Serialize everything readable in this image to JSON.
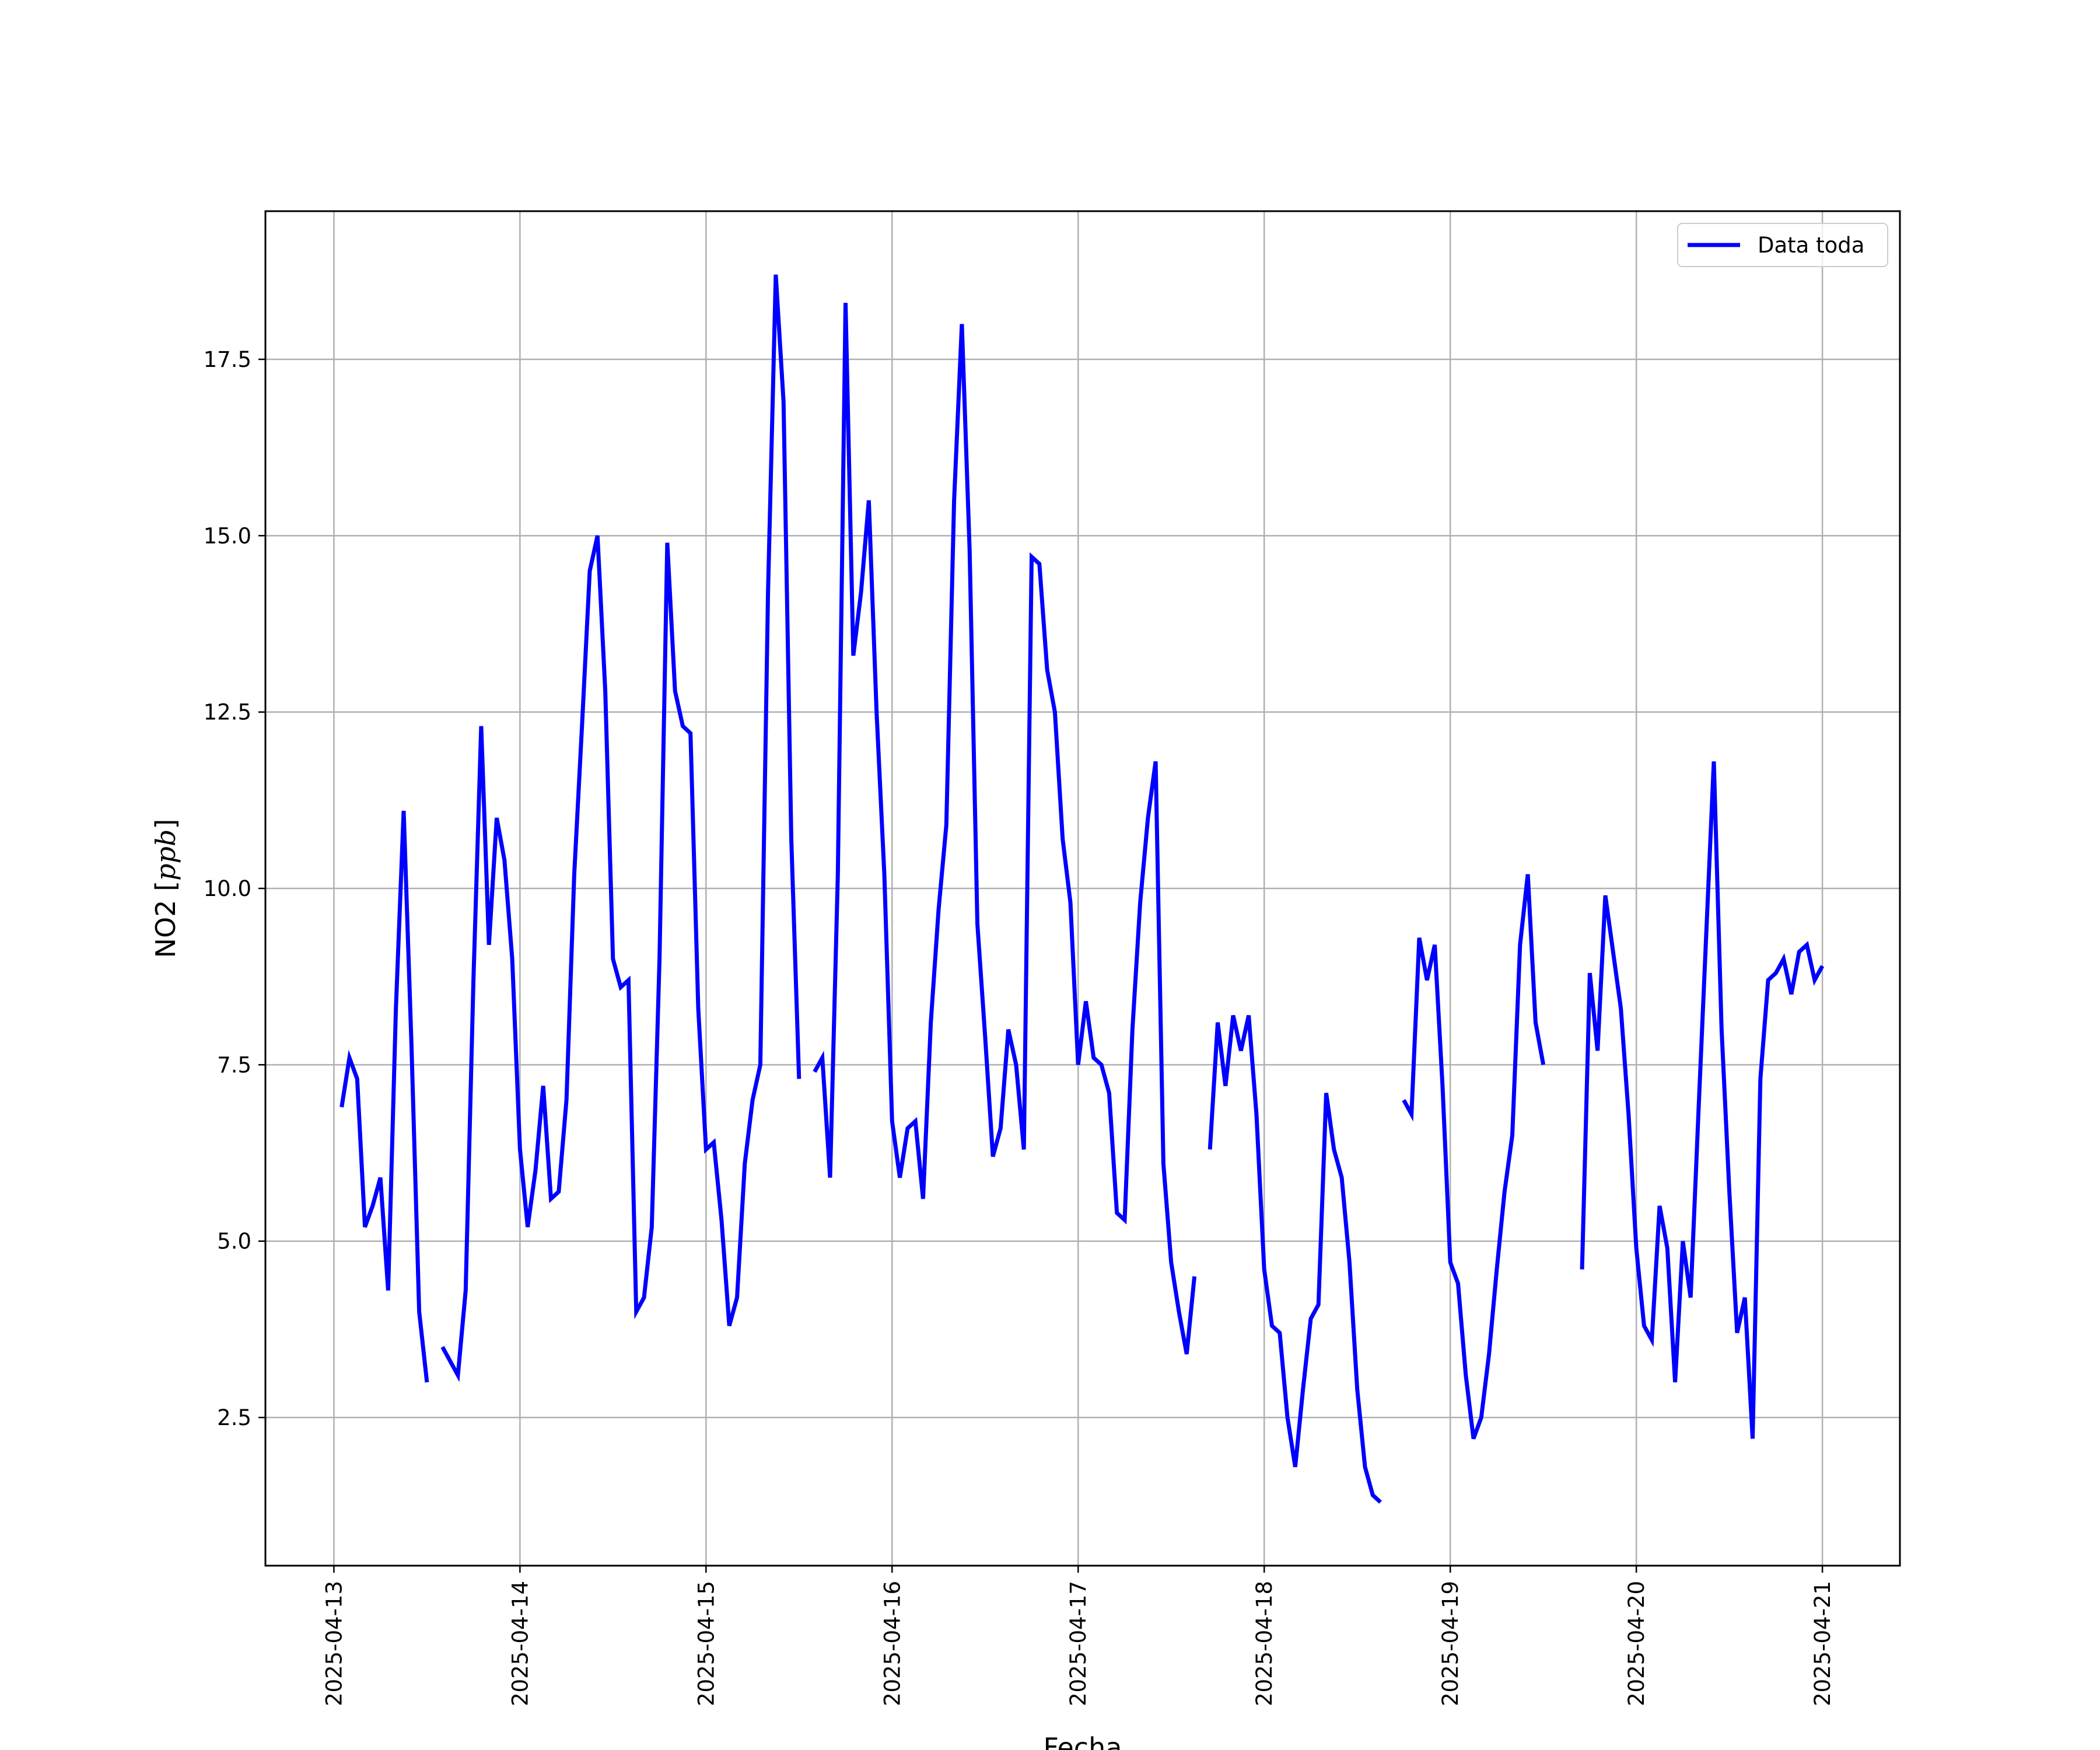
{
  "chart_data": {
    "type": "line",
    "title": "",
    "xlabel": "Fecha",
    "ylabel": "NO2 [ppb]",
    "ylabel_main": "NO2",
    "ylabel_unit": "ppb",
    "x_ticks": [
      "2025-04-13",
      "2025-04-14",
      "2025-04-15",
      "2025-04-16",
      "2025-04-17",
      "2025-04-18",
      "2025-04-19",
      "2025-04-20",
      "2025-04-21"
    ],
    "y_ticks": [
      "2.5",
      "5.0",
      "7.5",
      "10.0",
      "12.5",
      "15.0",
      "17.5"
    ],
    "xlim": [
      "2025-04-12T15:10",
      "2025-04-21T10:00"
    ],
    "ylim": [
      0.4,
      19.6
    ],
    "grid": true,
    "legend": "upper-right",
    "line_color": "#0000ff",
    "series": [
      {
        "name": "Data toda",
        "segments": [
          [
            [
              "2025-04-13T01:00",
              6.9
            ],
            [
              "2025-04-13T02:00",
              7.6
            ],
            [
              "2025-04-13T03:00",
              7.3
            ],
            [
              "2025-04-13T04:00",
              5.2
            ],
            [
              "2025-04-13T05:00",
              5.5
            ],
            [
              "2025-04-13T06:00",
              5.9
            ],
            [
              "2025-04-13T07:00",
              4.3
            ],
            [
              "2025-04-13T08:00",
              8.3
            ],
            [
              "2025-04-13T09:00",
              11.1
            ],
            [
              "2025-04-13T10:00",
              7.8
            ],
            [
              "2025-04-13T11:00",
              4.0
            ],
            [
              "2025-04-13T12:00",
              3.0
            ]
          ],
          [
            [
              "2025-04-13T14:00",
              3.5
            ],
            [
              "2025-04-13T15:00",
              3.3
            ],
            [
              "2025-04-13T16:00",
              3.1
            ],
            [
              "2025-04-13T17:00",
              4.3
            ],
            [
              "2025-04-13T18:00",
              8.7
            ],
            [
              "2025-04-13T19:00",
              12.3
            ],
            [
              "2025-04-13T20:00",
              9.2
            ],
            [
              "2025-04-13T21:00",
              11.0
            ],
            [
              "2025-04-13T22:00",
              10.4
            ],
            [
              "2025-04-13T23:00",
              9.0
            ],
            [
              "2025-04-14T00:00",
              6.3
            ],
            [
              "2025-04-14T01:00",
              5.2
            ],
            [
              "2025-04-14T02:00",
              6.0
            ],
            [
              "2025-04-14T03:00",
              7.2
            ],
            [
              "2025-04-14T04:00",
              5.6
            ],
            [
              "2025-04-14T05:00",
              5.7
            ],
            [
              "2025-04-14T06:00",
              7.0
            ],
            [
              "2025-04-14T07:00",
              10.2
            ],
            [
              "2025-04-14T08:00",
              12.3
            ],
            [
              "2025-04-14T09:00",
              14.5
            ],
            [
              "2025-04-14T10:00",
              15.0
            ],
            [
              "2025-04-14T11:00",
              12.8
            ],
            [
              "2025-04-14T12:00",
              9.0
            ],
            [
              "2025-04-14T13:00",
              8.6
            ],
            [
              "2025-04-14T14:00",
              8.7
            ],
            [
              "2025-04-14T15:00",
              4.0
            ],
            [
              "2025-04-14T16:00",
              4.2
            ],
            [
              "2025-04-14T17:00",
              5.2
            ],
            [
              "2025-04-14T18:00",
              9.0
            ],
            [
              "2025-04-14T19:00",
              14.9
            ],
            [
              "2025-04-14T20:00",
              12.8
            ],
            [
              "2025-04-14T21:00",
              12.3
            ],
            [
              "2025-04-14T22:00",
              12.2
            ],
            [
              "2025-04-14T23:00",
              8.3
            ],
            [
              "2025-04-15T00:00",
              6.3
            ],
            [
              "2025-04-15T01:00",
              6.4
            ],
            [
              "2025-04-15T02:00",
              5.3
            ],
            [
              "2025-04-15T03:00",
              3.8
            ],
            [
              "2025-04-15T04:00",
              4.2
            ],
            [
              "2025-04-15T05:00",
              6.1
            ],
            [
              "2025-04-15T06:00",
              7.0
            ],
            [
              "2025-04-15T07:00",
              7.5
            ],
            [
              "2025-04-15T08:00",
              14.2
            ],
            [
              "2025-04-15T09:00",
              18.7
            ],
            [
              "2025-04-15T10:00",
              16.9
            ],
            [
              "2025-04-15T11:00",
              10.7
            ],
            [
              "2025-04-15T12:00",
              7.3
            ]
          ],
          [
            [
              "2025-04-15T14:00",
              7.4
            ],
            [
              "2025-04-15T15:00",
              7.6
            ],
            [
              "2025-04-15T16:00",
              5.9
            ],
            [
              "2025-04-15T17:00",
              10.2
            ],
            [
              "2025-04-15T18:00",
              18.3
            ],
            [
              "2025-04-15T19:00",
              13.3
            ],
            [
              "2025-04-15T20:00",
              14.2
            ],
            [
              "2025-04-15T21:00",
              15.5
            ],
            [
              "2025-04-15T22:00",
              12.5
            ],
            [
              "2025-04-15T23:00",
              10.2
            ],
            [
              "2025-04-16T00:00",
              6.7
            ],
            [
              "2025-04-16T01:00",
              5.9
            ],
            [
              "2025-04-16T02:00",
              6.6
            ],
            [
              "2025-04-16T03:00",
              6.7
            ],
            [
              "2025-04-16T04:00",
              5.6
            ],
            [
              "2025-04-16T05:00",
              8.1
            ],
            [
              "2025-04-16T06:00",
              9.7
            ],
            [
              "2025-04-16T07:00",
              10.9
            ],
            [
              "2025-04-16T08:00",
              15.5
            ],
            [
              "2025-04-16T09:00",
              18.0
            ],
            [
              "2025-04-16T10:00",
              14.8
            ],
            [
              "2025-04-16T11:00",
              9.5
            ],
            [
              "2025-04-16T12:00",
              7.9
            ],
            [
              "2025-04-16T13:00",
              6.2
            ],
            [
              "2025-04-16T14:00",
              6.6
            ],
            [
              "2025-04-16T15:00",
              8.0
            ],
            [
              "2025-04-16T16:00",
              7.5
            ],
            [
              "2025-04-16T17:00",
              6.3
            ],
            [
              "2025-04-16T18:00",
              14.7
            ],
            [
              "2025-04-16T19:00",
              14.6
            ],
            [
              "2025-04-16T20:00",
              13.1
            ],
            [
              "2025-04-16T21:00",
              12.5
            ],
            [
              "2025-04-16T22:00",
              10.7
            ],
            [
              "2025-04-16T23:00",
              9.8
            ],
            [
              "2025-04-17T00:00",
              7.5
            ],
            [
              "2025-04-17T01:00",
              8.4
            ],
            [
              "2025-04-17T02:00",
              7.6
            ],
            [
              "2025-04-17T03:00",
              7.5
            ],
            [
              "2025-04-17T04:00",
              7.1
            ],
            [
              "2025-04-17T05:00",
              5.4
            ],
            [
              "2025-04-17T06:00",
              5.3
            ],
            [
              "2025-04-17T07:00",
              8.0
            ],
            [
              "2025-04-17T08:00",
              9.8
            ],
            [
              "2025-04-17T09:00",
              11.0
            ],
            [
              "2025-04-17T10:00",
              11.8
            ],
            [
              "2025-04-17T11:00",
              6.1
            ],
            [
              "2025-04-17T12:00",
              4.7
            ],
            [
              "2025-04-17T13:00",
              4.0
            ],
            [
              "2025-04-17T14:00",
              3.4
            ],
            [
              "2025-04-17T15:00",
              4.5
            ]
          ],
          [
            [
              "2025-04-17T17:00",
              6.3
            ],
            [
              "2025-04-17T18:00",
              8.1
            ],
            [
              "2025-04-17T19:00",
              7.2
            ],
            [
              "2025-04-17T20:00",
              8.2
            ],
            [
              "2025-04-17T21:00",
              7.7
            ],
            [
              "2025-04-17T22:00",
              8.2
            ],
            [
              "2025-04-17T23:00",
              6.8
            ],
            [
              "2025-04-18T00:00",
              4.6
            ],
            [
              "2025-04-18T01:00",
              3.8
            ],
            [
              "2025-04-18T02:00",
              3.7
            ],
            [
              "2025-04-18T03:00",
              2.5
            ],
            [
              "2025-04-18T04:00",
              1.8
            ],
            [
              "2025-04-18T05:00",
              2.9
            ],
            [
              "2025-04-18T06:00",
              3.9
            ],
            [
              "2025-04-18T07:00",
              4.1
            ],
            [
              "2025-04-18T08:00",
              7.1
            ],
            [
              "2025-04-18T09:00",
              6.3
            ],
            [
              "2025-04-18T10:00",
              5.9
            ],
            [
              "2025-04-18T11:00",
              4.7
            ],
            [
              "2025-04-18T12:00",
              2.9
            ],
            [
              "2025-04-18T13:00",
              1.8
            ],
            [
              "2025-04-18T14:00",
              1.4
            ],
            [
              "2025-04-18T15:00",
              1.3
            ]
          ],
          [
            [
              "2025-04-18T18:00",
              7.0
            ],
            [
              "2025-04-18T19:00",
              6.8
            ],
            [
              "2025-04-18T20:00",
              9.3
            ],
            [
              "2025-04-18T21:00",
              8.7
            ],
            [
              "2025-04-18T22:00",
              9.2
            ],
            [
              "2025-04-18T23:00",
              7.2
            ],
            [
              "2025-04-19T00:00",
              4.7
            ],
            [
              "2025-04-19T01:00",
              4.4
            ],
            [
              "2025-04-19T02:00",
              3.1
            ],
            [
              "2025-04-19T03:00",
              2.2
            ],
            [
              "2025-04-19T04:00",
              2.5
            ],
            [
              "2025-04-19T05:00",
              3.4
            ],
            [
              "2025-04-19T06:00",
              4.6
            ],
            [
              "2025-04-19T07:00",
              5.7
            ],
            [
              "2025-04-19T08:00",
              6.5
            ],
            [
              "2025-04-19T09:00",
              9.2
            ],
            [
              "2025-04-19T10:00",
              10.2
            ],
            [
              "2025-04-19T11:00",
              8.1
            ],
            [
              "2025-04-19T12:00",
              7.5
            ]
          ],
          [
            [
              "2025-04-19T17:00",
              4.6
            ],
            [
              "2025-04-19T18:00",
              8.8
            ],
            [
              "2025-04-19T19:00",
              7.7
            ],
            [
              "2025-04-19T20:00",
              9.9
            ],
            [
              "2025-04-19T21:00",
              9.1
            ],
            [
              "2025-04-19T22:00",
              8.3
            ],
            [
              "2025-04-19T23:00",
              6.8
            ],
            [
              "2025-04-20T00:00",
              4.9
            ],
            [
              "2025-04-20T01:00",
              3.8
            ],
            [
              "2025-04-20T02:00",
              3.6
            ],
            [
              "2025-04-20T03:00",
              5.5
            ],
            [
              "2025-04-20T04:00",
              4.9
            ],
            [
              "2025-04-20T05:00",
              3.0
            ],
            [
              "2025-04-20T06:00",
              5.0
            ],
            [
              "2025-04-20T07:00",
              4.2
            ],
            [
              "2025-04-20T08:00",
              6.8
            ],
            [
              "2025-04-20T09:00",
              9.3
            ],
            [
              "2025-04-20T10:00",
              11.8
            ],
            [
              "2025-04-20T11:00",
              8.0
            ],
            [
              "2025-04-20T12:00",
              5.7
            ],
            [
              "2025-04-20T13:00",
              3.7
            ],
            [
              "2025-04-20T14:00",
              4.2
            ],
            [
              "2025-04-20T15:00",
              2.2
            ],
            [
              "2025-04-20T16:00",
              7.3
            ],
            [
              "2025-04-20T17:00",
              8.7
            ],
            [
              "2025-04-20T18:00",
              8.8
            ],
            [
              "2025-04-20T19:00",
              9.0
            ],
            [
              "2025-04-20T20:00",
              8.5
            ],
            [
              "2025-04-20T21:00",
              9.1
            ],
            [
              "2025-04-20T22:00",
              9.2
            ],
            [
              "2025-04-20T23:00",
              8.7
            ],
            [
              "2025-04-21T00:00",
              8.9
            ]
          ]
        ]
      }
    ]
  }
}
